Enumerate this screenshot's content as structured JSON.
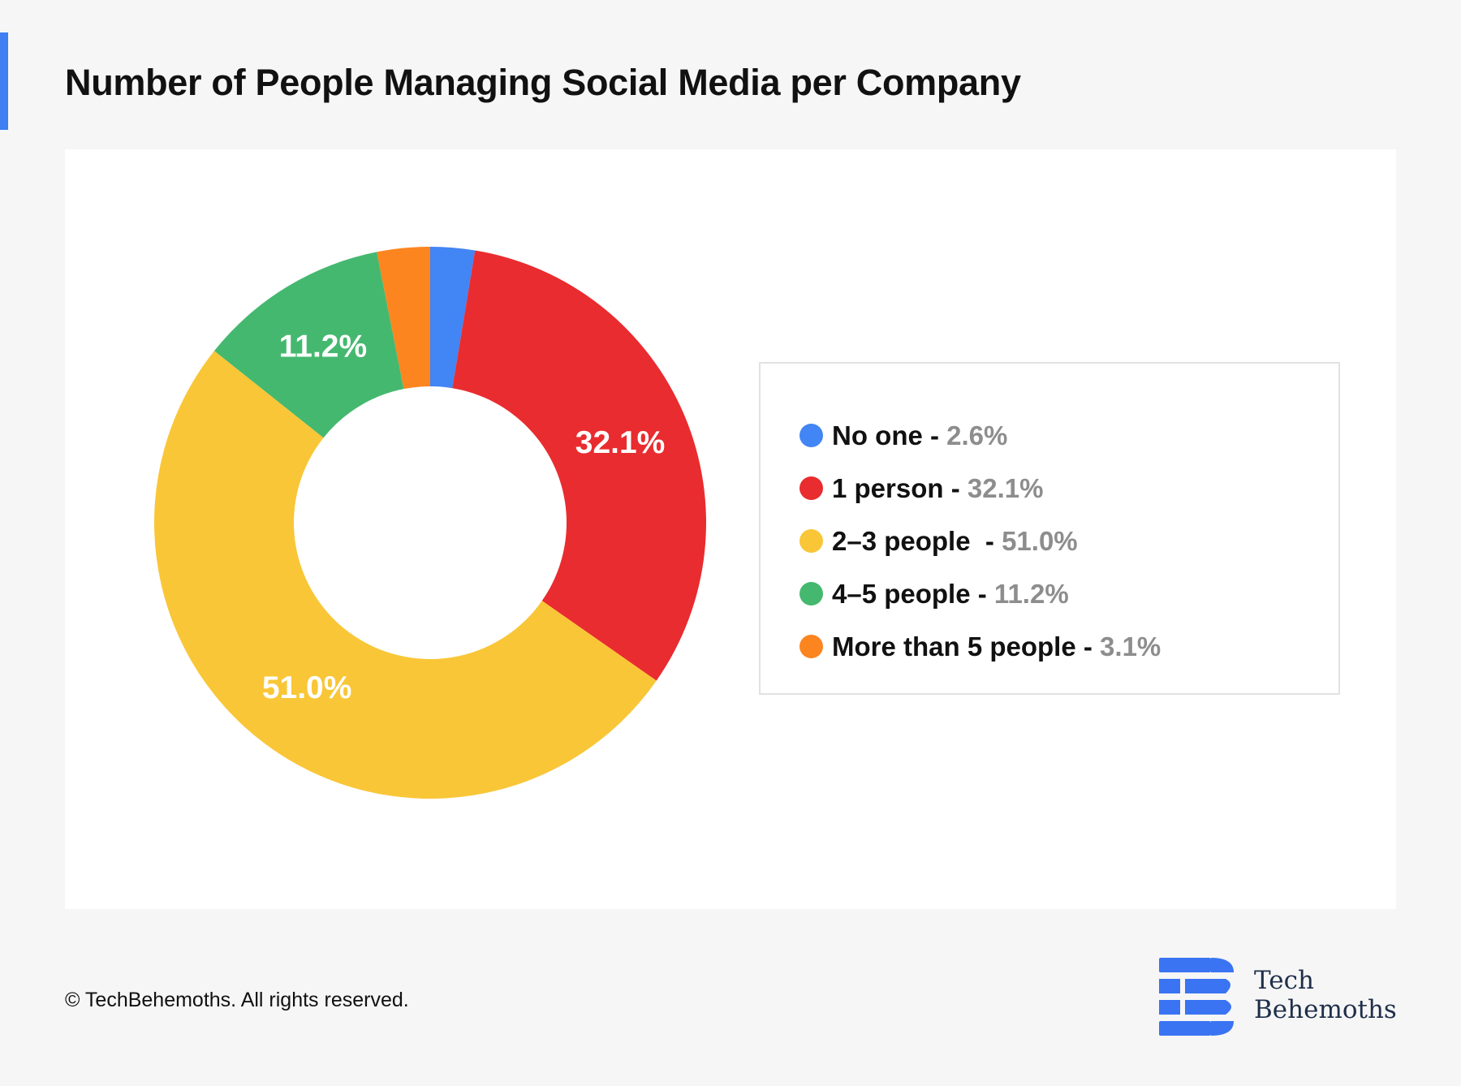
{
  "title": "Number of People Managing Social Media per Company",
  "chart_data": {
    "type": "pie",
    "variant": "donut",
    "title": "Number of People Managing Social Media per Company",
    "categories": [
      "No one",
      "1 person",
      "2–3 people",
      "4–5 people",
      "More than 5 people"
    ],
    "values": [
      2.6,
      32.1,
      51.0,
      11.2,
      3.1
    ],
    "unit": "%",
    "colors": [
      "#4285f4",
      "#e92c2f",
      "#f9c637",
      "#45b86f",
      "#fd8520"
    ],
    "slice_labels": [
      "",
      "32.1%",
      "51.0%",
      "11.2%",
      ""
    ],
    "legend": [
      {
        "label": "No one",
        "sep": " - ",
        "value": "2.6%",
        "color": "#4285f4"
      },
      {
        "label": "1 person",
        "sep": " - ",
        "value": "32.1%",
        "color": "#e92c2f"
      },
      {
        "label": "2–3 people",
        "sep": "  - ",
        "value": "51.0%",
        "color": "#f9c637"
      },
      {
        "label": "4–5 people",
        "sep": " - ",
        "value": "11.2%",
        "color": "#45b86f"
      },
      {
        "label": "More than 5 people",
        "sep": " - ",
        "value": "3.1%",
        "color": "#fd8520"
      }
    ],
    "legend_placement": "right"
  },
  "footer": {
    "copyright": "© TechBehemoths. All rights reserved."
  },
  "brand": {
    "line1": "Tech",
    "line2": "Behemoths",
    "color": "#3a74f2"
  }
}
